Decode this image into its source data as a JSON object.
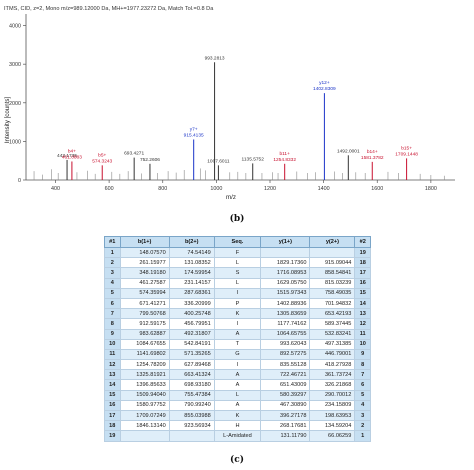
{
  "chart_data": [
    {
      "type": "line",
      "subtype": "mass-spectrum",
      "title": "ITMS, CID, z=2, Mono m/z=989.12000 Da, MH+=1977.23272 Da, Match Tol.=0.8 Da",
      "xlabel": "m/z",
      "ylabel": "Intensity [counts]",
      "xlim": [
        290,
        1890
      ],
      "ylim": [
        0,
        4300
      ],
      "xticks": [
        400,
        600,
        800,
        1000,
        1200,
        1400,
        1600,
        1800
      ],
      "yticks": [
        0,
        1000,
        2000,
        3000,
        4000
      ],
      "grid": false,
      "peaks": [
        {
          "mz": 320,
          "i": 230
        },
        {
          "mz": 352,
          "i": 140
        },
        {
          "mz": 385,
          "i": 280
        },
        {
          "mz": 410,
          "i": 180
        },
        {
          "mz": 443.1,
          "i": 520,
          "label": "443.1735",
          "color": "#333333"
        },
        {
          "mz": 461.2,
          "i": 480,
          "label": "b4+\n461.0883",
          "color": "#c8102e"
        },
        {
          "mz": 480,
          "i": 200
        },
        {
          "mz": 520,
          "i": 240
        },
        {
          "mz": 548,
          "i": 160
        },
        {
          "mz": 574.3,
          "i": 380,
          "label": "b5+\n574.3243",
          "color": "#c8102e"
        },
        {
          "mz": 610,
          "i": 210
        },
        {
          "mz": 640,
          "i": 160
        },
        {
          "mz": 671,
          "i": 230
        },
        {
          "mz": 693.4,
          "i": 580,
          "label": "693.4271",
          "color": "#333333"
        },
        {
          "mz": 720,
          "i": 170
        },
        {
          "mz": 752.3,
          "i": 420,
          "label": "752.2606",
          "color": "#333333"
        },
        {
          "mz": 780,
          "i": 180
        },
        {
          "mz": 820,
          "i": 230
        },
        {
          "mz": 850,
          "i": 190
        },
        {
          "mz": 880,
          "i": 260
        },
        {
          "mz": 915.4,
          "i": 1050,
          "label": "y7+\n915.4135",
          "color": "#1a33c8"
        },
        {
          "mz": 940,
          "i": 300
        },
        {
          "mz": 960,
          "i": 250
        },
        {
          "mz": 993.3,
          "i": 3050,
          "label": "993.2813",
          "color": "#333333"
        },
        {
          "mz": 1007.6,
          "i": 380,
          "label": "1007.6011",
          "color": "#333333"
        },
        {
          "mz": 1050,
          "i": 200
        },
        {
          "mz": 1080,
          "i": 210
        },
        {
          "mz": 1110,
          "i": 180
        },
        {
          "mz": 1135.6,
          "i": 430,
          "label": "1135.5752",
          "color": "#333333"
        },
        {
          "mz": 1170,
          "i": 180
        },
        {
          "mz": 1210,
          "i": 200
        },
        {
          "mz": 1230,
          "i": 180
        },
        {
          "mz": 1254.8,
          "i": 420,
          "label": "b11+\n1254.8332",
          "color": "#c8102e"
        },
        {
          "mz": 1300,
          "i": 220
        },
        {
          "mz": 1340,
          "i": 180
        },
        {
          "mz": 1370,
          "i": 200
        },
        {
          "mz": 1402.9,
          "i": 2250,
          "label": "y12+\n1402.8309",
          "color": "#1a33c8"
        },
        {
          "mz": 1440,
          "i": 220
        },
        {
          "mz": 1470,
          "i": 180
        },
        {
          "mz": 1492.1,
          "i": 640,
          "label": "1492.0001",
          "color": "#333333"
        },
        {
          "mz": 1520,
          "i": 200
        },
        {
          "mz": 1555,
          "i": 180
        },
        {
          "mz": 1581.4,
          "i": 470,
          "label": "b14+\n1581.3782",
          "color": "#c8102e"
        },
        {
          "mz": 1640,
          "i": 210
        },
        {
          "mz": 1680,
          "i": 180
        },
        {
          "mz": 1709.5,
          "i": 560,
          "label": "b15+\n1709.1448",
          "color": "#c8102e"
        },
        {
          "mz": 1760,
          "i": 160
        },
        {
          "mz": 1800,
          "i": 130
        },
        {
          "mz": 1850,
          "i": 110
        }
      ]
    },
    {
      "type": "table",
      "headers": [
        "#1",
        "b(1+)",
        "b(2+)",
        "Seq.",
        "y(1+)",
        "y(2+)",
        "#2"
      ],
      "rows": [
        [
          "1",
          "148.07570",
          "74.54149",
          "F",
          "",
          "",
          "19"
        ],
        [
          "2",
          "261.15977",
          "131.08352",
          "L",
          "1829.17360",
          "915.09044",
          "18"
        ],
        [
          "3",
          "348.19180",
          "174.59954",
          "S",
          "1716.08953",
          "858.54841",
          "17"
        ],
        [
          "4",
          "461.27587",
          "231.14157",
          "L",
          "1629.05750",
          "815.03239",
          "16"
        ],
        [
          "5",
          "574.35994",
          "287.68361",
          "I",
          "1515.97343",
          "758.49035",
          "15"
        ],
        [
          "6",
          "671.41271",
          "336.20999",
          "P",
          "1402.88936",
          "701.94832",
          "14"
        ],
        [
          "7",
          "799.50768",
          "400.25748",
          "K",
          "1305.83659",
          "653.42193",
          "13"
        ],
        [
          "8",
          "912.59175",
          "456.79951",
          "I",
          "1177.74162",
          "589.37445",
          "12"
        ],
        [
          "9",
          "983.62887",
          "492.31807",
          "A",
          "1064.65755",
          "532.83241",
          "11"
        ],
        [
          "10",
          "1084.67655",
          "542.84191",
          "T",
          "993.62043",
          "497.31385",
          "10"
        ],
        [
          "11",
          "1141.69802",
          "571.35265",
          "G",
          "892.57275",
          "446.79001",
          "9"
        ],
        [
          "12",
          "1254.78209",
          "627.89468",
          "I",
          "835.55128",
          "418.27928",
          "8"
        ],
        [
          "13",
          "1325.81921",
          "663.41324",
          "A",
          "722.46721",
          "361.73724",
          "7"
        ],
        [
          "14",
          "1396.85633",
          "698.93180",
          "A",
          "651.43009",
          "326.21868",
          "6"
        ],
        [
          "15",
          "1509.94040",
          "755.47384",
          "L",
          "580.39297",
          "290.70012",
          "5"
        ],
        [
          "16",
          "1580.97752",
          "790.99240",
          "A",
          "467.30890",
          "234.15809",
          "4"
        ],
        [
          "17",
          "1709.07249",
          "855.03988",
          "K",
          "396.27178",
          "198.63953",
          "3"
        ],
        [
          "18",
          "1846.13140",
          "923.56934",
          "H",
          "268.17681",
          "134.59204",
          "2"
        ],
        [
          "19",
          "",
          "",
          "L-Amidated",
          "131.11790",
          "66.06259",
          "1"
        ]
      ],
      "b_matched": [
        4,
        5,
        6,
        7,
        8,
        9,
        10,
        12,
        13,
        14,
        15,
        16,
        17,
        18
      ],
      "y_matched": [
        2,
        3,
        4,
        5,
        6,
        7,
        8,
        9,
        10,
        11,
        12,
        13,
        14,
        15,
        16,
        17
      ],
      "colors": {
        "b": "#c8102e",
        "y": "#1a33c8",
        "header": "#c6dff2"
      }
    }
  ],
  "captions": {
    "b": "(b)",
    "c": "(c)"
  }
}
